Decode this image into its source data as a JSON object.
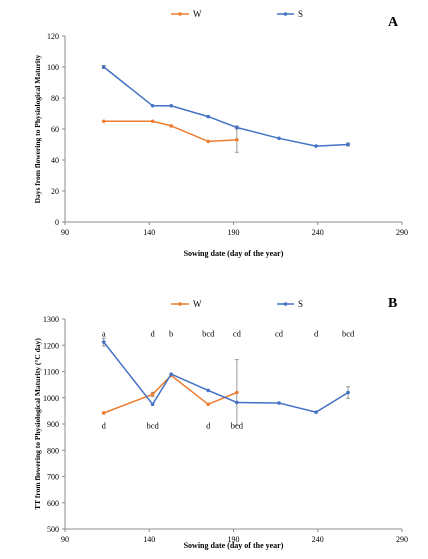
{
  "colors": {
    "W": "#ED7D31",
    "S": "#4472C4",
    "axis": "#8c8c8c",
    "text": "#000000"
  },
  "chart_data": [
    {
      "type": "line",
      "panel_label": "A",
      "title": "",
      "xlabel": "Sowing date (day of the year)",
      "ylabel": "Days from flowering to Physiological Maturity",
      "xlim": [
        90,
        290
      ],
      "ylim": [
        0,
        120
      ],
      "xticks": [
        90,
        140,
        190,
        240,
        290
      ],
      "yticks": [
        0,
        20,
        40,
        60,
        80,
        100,
        120
      ],
      "grid": false,
      "legend_position": "top-center",
      "series": [
        {
          "name": "W",
          "color": "#ED7D31",
          "x": [
            113,
            142,
            153,
            175,
            192
          ],
          "y": [
            65,
            65,
            62,
            52,
            53
          ],
          "err": [
            0,
            0,
            0,
            0,
            8
          ]
        },
        {
          "name": "S",
          "color": "#4472C4",
          "x": [
            113,
            142,
            153,
            175,
            192,
            217,
            239,
            258
          ],
          "y": [
            100,
            75,
            75,
            68,
            61,
            54,
            49,
            50
          ],
          "err": [
            1,
            0,
            0,
            0,
            1,
            0,
            0,
            1
          ]
        }
      ]
    },
    {
      "type": "line",
      "panel_label": "B",
      "title": "",
      "xlabel": "Sowing date (day of the year)",
      "ylabel": "TT from flowering to Physiological Maturity (°C day)",
      "xlim": [
        90,
        290
      ],
      "ylim": [
        500,
        1300
      ],
      "xticks": [
        90,
        140,
        190,
        240,
        290
      ],
      "yticks": [
        500,
        600,
        700,
        800,
        900,
        1000,
        1100,
        1200,
        1300
      ],
      "grid": false,
      "legend_position": "top-center",
      "series": [
        {
          "name": "W",
          "color": "#ED7D31",
          "x": [
            113,
            142,
            153,
            175,
            192
          ],
          "y": [
            942,
            1013,
            1085,
            975,
            1020
          ],
          "err": [
            0,
            8,
            0,
            0,
            125
          ]
        },
        {
          "name": "S",
          "color": "#4472C4",
          "x": [
            113,
            142,
            153,
            175,
            192,
            217,
            239,
            258
          ],
          "y": [
            1212,
            975,
            1090,
            1028,
            982,
            980,
            945,
            1020
          ],
          "err": [
            15,
            0,
            0,
            0,
            0,
            0,
            0,
            22
          ]
        }
      ],
      "annotations": [
        {
          "text": "a",
          "x": 113,
          "y": 1245
        },
        {
          "text": "d",
          "x": 142,
          "y": 1245
        },
        {
          "text": "b",
          "x": 153,
          "y": 1245
        },
        {
          "text": "bcd",
          "x": 175,
          "y": 1245
        },
        {
          "text": "cd",
          "x": 192,
          "y": 1245
        },
        {
          "text": "cd",
          "x": 217,
          "y": 1245
        },
        {
          "text": "d",
          "x": 239,
          "y": 1245
        },
        {
          "text": "bcd",
          "x": 258,
          "y": 1245
        },
        {
          "text": "d",
          "x": 113,
          "y": 895
        },
        {
          "text": "bcd",
          "x": 142,
          "y": 895
        },
        {
          "text": "d",
          "x": 175,
          "y": 895
        },
        {
          "text": "bcd",
          "x": 192,
          "y": 895
        }
      ]
    }
  ]
}
